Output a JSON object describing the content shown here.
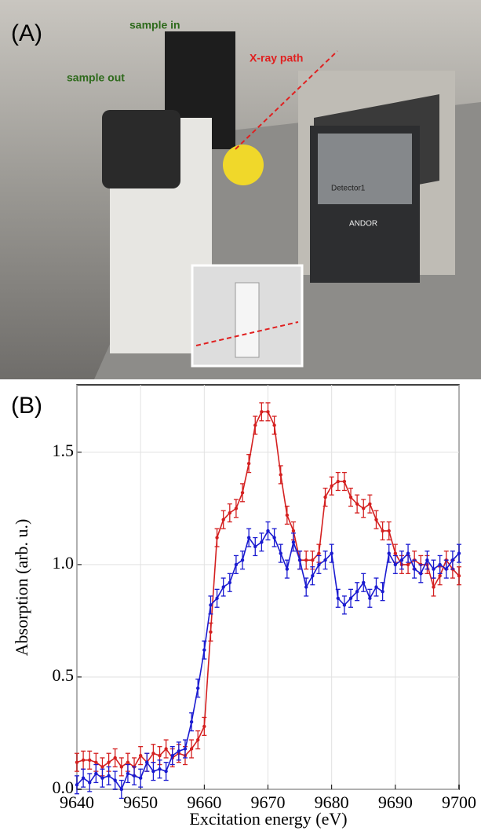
{
  "photo": {
    "panel_label": "(A)",
    "sample_in": "sample in",
    "sample_out": "sample out",
    "xray_path": "X-ray path",
    "detector": "Detector1",
    "brand": "ANDOR"
  },
  "chart_data": {
    "type": "line",
    "panel_label": "(B)",
    "xlabel": "Excitation energy (eV)",
    "ylabel": "Absorption (arb. u.)",
    "x": [
      9640,
      9641,
      9642,
      9643,
      9644,
      9645,
      9646,
      9647,
      9648,
      9649,
      9650,
      9651,
      9652,
      9653,
      9654,
      9655,
      9656,
      9657,
      9658,
      9659,
      9660,
      9661,
      9662,
      9663,
      9664,
      9665,
      9666,
      9667,
      9668,
      9669,
      9670,
      9671,
      9672,
      9673,
      9674,
      9675,
      9676,
      9677,
      9678,
      9679,
      9680,
      9681,
      9682,
      9683,
      9684,
      9685,
      9686,
      9687,
      9688,
      9689,
      9690,
      9691,
      9692,
      9693,
      9694,
      9695,
      9696,
      9697,
      9698,
      9699,
      9700
    ],
    "series": [
      {
        "color": "#d42020",
        "error": 0.04,
        "values": [
          0.12,
          0.13,
          0.13,
          0.12,
          0.1,
          0.12,
          0.14,
          0.1,
          0.12,
          0.1,
          0.15,
          0.12,
          0.16,
          0.15,
          0.18,
          0.14,
          0.16,
          0.15,
          0.18,
          0.22,
          0.28,
          0.7,
          1.12,
          1.2,
          1.23,
          1.25,
          1.32,
          1.45,
          1.62,
          1.68,
          1.68,
          1.62,
          1.4,
          1.22,
          1.15,
          1.02,
          1.02,
          1.02,
          1.05,
          1.3,
          1.35,
          1.37,
          1.37,
          1.3,
          1.27,
          1.25,
          1.27,
          1.2,
          1.15,
          1.15,
          1.05,
          1.0,
          1.0,
          1.02,
          1.0,
          1.0,
          0.9,
          0.95,
          1.02,
          0.98,
          0.95
        ]
      },
      {
        "color": "#1a1ad0",
        "error": 0.04,
        "values": [
          0.02,
          0.05,
          0.03,
          0.07,
          0.05,
          0.06,
          0.04,
          0.0,
          0.07,
          0.06,
          0.05,
          0.12,
          0.08,
          0.09,
          0.08,
          0.15,
          0.17,
          0.18,
          0.3,
          0.45,
          0.62,
          0.82,
          0.85,
          0.9,
          0.92,
          1.0,
          1.02,
          1.12,
          1.08,
          1.1,
          1.15,
          1.12,
          1.05,
          0.98,
          1.1,
          1.02,
          0.9,
          0.95,
          1.0,
          1.02,
          1.05,
          0.85,
          0.82,
          0.85,
          0.88,
          0.92,
          0.85,
          0.9,
          0.88,
          1.05,
          1.0,
          1.02,
          1.05,
          0.98,
          0.96,
          1.02,
          0.98,
          1.0,
          0.98,
          1.02,
          1.05
        ]
      }
    ],
    "xlim": [
      9640,
      9700
    ],
    "xticks": [
      9640,
      9650,
      9660,
      9670,
      9680,
      9690,
      9700
    ],
    "ylim": [
      0,
      1.8
    ],
    "yticks": [
      {
        "value": 0,
        "label": "0.0"
      },
      0.5,
      {
        "value": 1,
        "label": "1.0"
      },
      1.5
    ],
    "grid": true
  }
}
